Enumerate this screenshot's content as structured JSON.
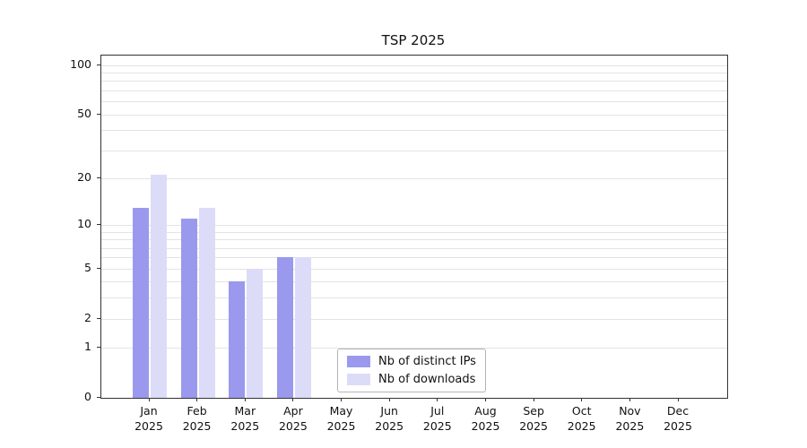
{
  "figure": {
    "title": "TSP 2025"
  },
  "chart_data": {
    "type": "bar",
    "title": "TSP 2025",
    "categories": [
      "Jan",
      "Feb",
      "Mar",
      "Apr",
      "May",
      "Jun",
      "Jul",
      "Aug",
      "Sep",
      "Oct",
      "Nov",
      "Dec"
    ],
    "category_year": "2025",
    "series": [
      {
        "name": "Nb of distinct IPs",
        "color": "#9a99ee",
        "values": [
          13,
          11,
          4,
          6,
          0,
          0,
          0,
          0,
          0,
          0,
          0,
          0
        ]
      },
      {
        "name": "Nb of downloads",
        "color": "#dcdcf8",
        "values": [
          21,
          13,
          5,
          6,
          0,
          0,
          0,
          0,
          0,
          0,
          0,
          0
        ]
      }
    ],
    "yscale": "log1p",
    "ylim": [
      0,
      114
    ],
    "ytick_values": [
      100,
      50,
      20,
      10,
      5,
      2,
      1,
      0
    ],
    "ytick_labels": [
      "100",
      "50",
      "20",
      "10",
      "5",
      "2",
      "1",
      "0"
    ],
    "minor_grid_values": [
      1,
      2,
      3,
      4,
      5,
      6,
      7,
      8,
      9,
      10,
      20,
      30,
      40,
      50,
      60,
      70,
      80,
      90,
      100
    ],
    "grid": "horizontal-minor",
    "legend": {
      "position": "lower-center",
      "entries": [
        "Nb of distinct IPs",
        "Nb of downloads"
      ]
    }
  }
}
